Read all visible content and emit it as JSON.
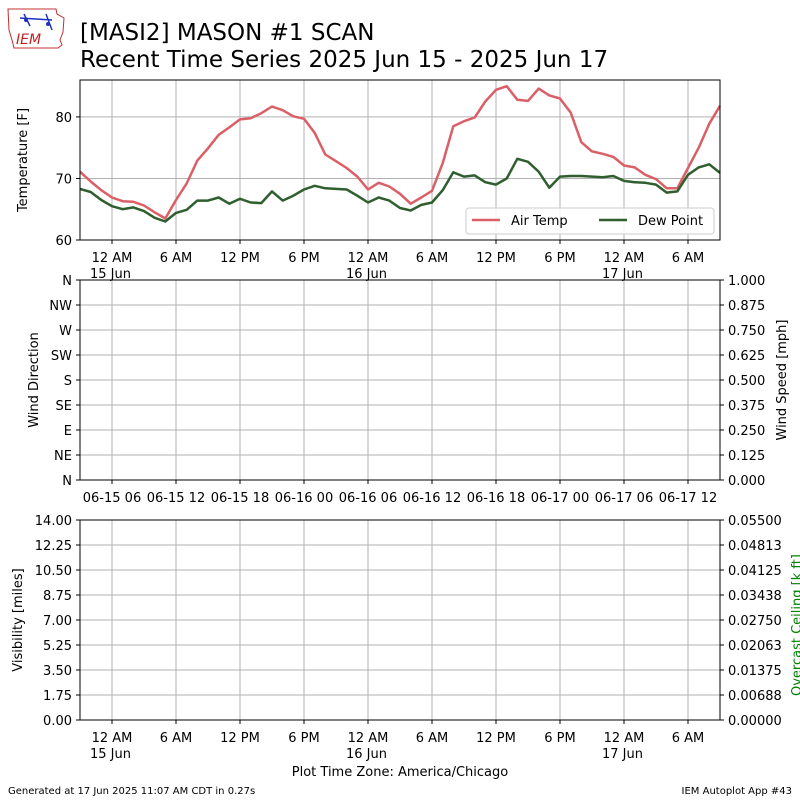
{
  "header": {
    "logo_text": "IEM",
    "title_line1": "[MASI2] MASON #1 SCAN",
    "title_line2": "Recent Time Series 2025 Jun 15 - 2025 Jun 17"
  },
  "footer": {
    "generated": "Generated at 17 Jun 2025 11:07 AM CDT in 0.27s",
    "app": "IEM Autoplot App #43"
  },
  "colors": {
    "air_temp": "#da5f66",
    "dew_point": "#2f5e2f",
    "ceiling_label": "#008000",
    "grid": "#b0b0b0"
  },
  "chart_data": [
    {
      "type": "line",
      "ylabel": "Temperature [F]",
      "ylim": [
        60,
        86
      ],
      "yticks": [
        60,
        70,
        80
      ],
      "x_units": "hours since 2025-06-15 00:00",
      "xlim": [
        -3,
        57
      ],
      "x_ticks": [
        {
          "x": 0,
          "label": "12 AM",
          "sub": "15 Jun"
        },
        {
          "x": 6,
          "label": "6 AM",
          "sub": ""
        },
        {
          "x": 12,
          "label": "12 PM",
          "sub": ""
        },
        {
          "x": 18,
          "label": "6 PM",
          "sub": ""
        },
        {
          "x": 24,
          "label": "12 AM",
          "sub": "16 Jun"
        },
        {
          "x": 30,
          "label": "6 AM",
          "sub": ""
        },
        {
          "x": 36,
          "label": "12 PM",
          "sub": ""
        },
        {
          "x": 42,
          "label": "6 PM",
          "sub": ""
        },
        {
          "x": 48,
          "label": "12 AM",
          "sub": "17 Jun"
        },
        {
          "x": 54,
          "label": "6 AM",
          "sub": ""
        }
      ],
      "grid": true,
      "legend": "lower-right",
      "series": [
        {
          "name": "Air Temp",
          "x": [
            -3,
            -2,
            -1,
            0,
            1,
            2,
            3,
            4,
            5,
            6,
            7,
            8,
            9,
            10,
            11,
            12,
            13,
            14,
            15,
            16,
            17,
            18,
            19,
            20,
            21,
            22,
            23,
            24,
            25,
            26,
            27,
            28,
            29,
            30,
            31,
            32,
            33,
            34,
            35,
            36,
            37,
            38,
            39,
            40,
            41,
            42,
            43,
            44,
            45,
            46,
            47,
            48,
            49,
            50,
            51,
            52,
            53,
            54,
            55,
            56,
            57
          ],
          "values": [
            71.1,
            69.5,
            68.1,
            66.9,
            66.3,
            66.2,
            65.6,
            64.5,
            63.5,
            66.5,
            69.2,
            72.9,
            74.9,
            77.1,
            78.3,
            79.6,
            79.8,
            80.6,
            81.7,
            81.1,
            80.1,
            79.7,
            77.4,
            73.9,
            72.8,
            71.7,
            70.3,
            68.2,
            69.3,
            68.7,
            67.5,
            65.9,
            66.9,
            68.0,
            72.5,
            78.5,
            79.3,
            79.9,
            82.5,
            84.4,
            85.0,
            82.8,
            82.6,
            84.6,
            83.5,
            83.0,
            80.7,
            75.9,
            74.4,
            74.0,
            73.5,
            72.1,
            71.8,
            70.6,
            69.9,
            68.4,
            68.4,
            71.7,
            75.0,
            78.9,
            81.8
          ]
        },
        {
          "name": "Dew Point",
          "x": [
            -3,
            -2,
            -1,
            0,
            1,
            2,
            3,
            4,
            5,
            6,
            7,
            8,
            9,
            10,
            11,
            12,
            13,
            14,
            15,
            16,
            17,
            18,
            19,
            20,
            21,
            22,
            23,
            24,
            25,
            26,
            27,
            28,
            29,
            30,
            31,
            32,
            33,
            34,
            35,
            36,
            37,
            38,
            39,
            40,
            41,
            42,
            43,
            44,
            45,
            46,
            47,
            48,
            49,
            50,
            51,
            52,
            53,
            54,
            55,
            56,
            57
          ],
          "values": [
            68.3,
            67.8,
            66.5,
            65.5,
            65.0,
            65.3,
            64.7,
            63.6,
            63.0,
            64.4,
            64.9,
            66.4,
            66.4,
            66.9,
            65.9,
            66.7,
            66.1,
            66.0,
            67.9,
            66.4,
            67.2,
            68.2,
            68.8,
            68.4,
            68.3,
            68.2,
            67.2,
            66.1,
            66.9,
            66.4,
            65.2,
            64.8,
            65.7,
            66.1,
            68.1,
            71.0,
            70.3,
            70.5,
            69.4,
            69.0,
            70.0,
            73.2,
            72.7,
            71.1,
            68.5,
            70.3,
            70.4,
            70.4,
            70.3,
            70.2,
            70.4,
            69.6,
            69.4,
            69.3,
            69.0,
            67.7,
            67.9,
            70.6,
            71.8,
            72.3,
            70.9
          ]
        }
      ]
    },
    {
      "type": "scatter",
      "ylabel": "Wind Direction",
      "ylabel_right": "Wind Speed [mph]",
      "ytick_labels": [
        "N",
        "NE",
        "E",
        "SE",
        "S",
        "SW",
        "W",
        "NW",
        "N"
      ],
      "ylim_right": [
        0,
        1
      ],
      "yticks_right": [
        "0.000",
        "0.125",
        "0.250",
        "0.375",
        "0.500",
        "0.625",
        "0.750",
        "0.875",
        "1.000"
      ],
      "x_ticks": [
        {
          "x": 0,
          "label": "06-15 06"
        },
        {
          "x": 6,
          "label": "06-15 12"
        },
        {
          "x": 12,
          "label": "06-15 18"
        },
        {
          "x": 18,
          "label": "06-16 00"
        },
        {
          "x": 24,
          "label": "06-16 06"
        },
        {
          "x": 30,
          "label": "06-16 12"
        },
        {
          "x": 36,
          "label": "06-16 18"
        },
        {
          "x": 42,
          "label": "06-17 00"
        },
        {
          "x": 48,
          "label": "06-17 06"
        },
        {
          "x": 54,
          "label": "06-17 12"
        }
      ],
      "grid": true,
      "series": []
    },
    {
      "type": "line",
      "ylabel": "Visibility [miles]",
      "ylabel_right": "Overcast Ceiling [k ft]",
      "ylim": [
        0,
        14
      ],
      "yticks": [
        "0.00",
        "1.75",
        "3.50",
        "5.25",
        "7.00",
        "8.75",
        "10.50",
        "12.25",
        "14.00"
      ],
      "ylim_right": [
        0,
        0.055
      ],
      "yticks_right": [
        "0.00000",
        "0.00688",
        "0.01375",
        "0.02063",
        "0.02750",
        "0.03438",
        "0.04125",
        "0.04813",
        "0.05500"
      ],
      "x_ticks": [
        {
          "x": 0,
          "label": "12 AM",
          "sub": "15 Jun"
        },
        {
          "x": 6,
          "label": "6 AM",
          "sub": ""
        },
        {
          "x": 12,
          "label": "12 PM",
          "sub": ""
        },
        {
          "x": 18,
          "label": "6 PM",
          "sub": ""
        },
        {
          "x": 24,
          "label": "12 AM",
          "sub": "16 Jun"
        },
        {
          "x": 30,
          "label": "6 AM",
          "sub": ""
        },
        {
          "x": 36,
          "label": "12 PM",
          "sub": ""
        },
        {
          "x": 42,
          "label": "6 PM",
          "sub": ""
        },
        {
          "x": 48,
          "label": "12 AM",
          "sub": "17 Jun"
        },
        {
          "x": 54,
          "label": "6 AM",
          "sub": ""
        }
      ],
      "xlabel": "Plot Time Zone: America/Chicago",
      "grid": true,
      "series": []
    }
  ]
}
